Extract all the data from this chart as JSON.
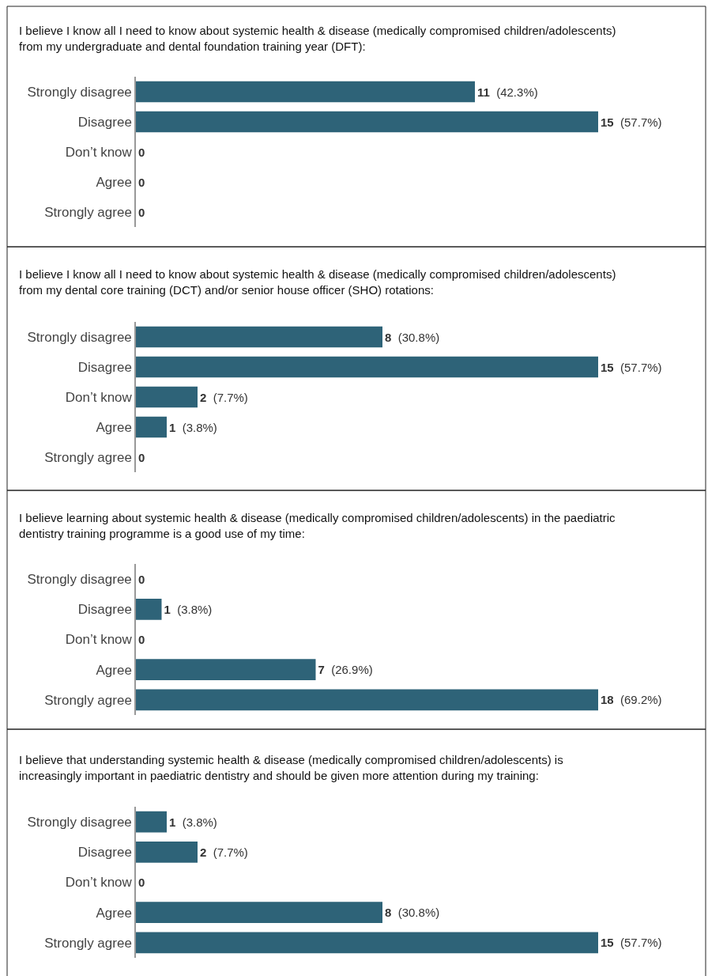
{
  "chart_data": [
    {
      "type": "bar",
      "orientation": "horizontal",
      "title": "I believe I know all I need to know about systemic health & disease (medically compromised children/adolescents) from my undergraduate and dental foundation training year (DFT):",
      "categories": [
        "Strongly disagree",
        "Disagree",
        "Don’t know",
        "Agree",
        "Strongly agree"
      ],
      "values": [
        11,
        15,
        0,
        0,
        0
      ],
      "value_labels": [
        "11 (42.3%)",
        "15 (57.7%)",
        "0",
        "0",
        "0"
      ],
      "color": "#2e6378"
    },
    {
      "type": "bar",
      "orientation": "horizontal",
      "title": "I believe I know all I need to know about systemic health & disease (medically compromised children/adolescents) from my dental core training (DCT) and/or senior house officer (SHO) rotations:",
      "categories": [
        "Strongly disagree",
        "Disagree",
        "Don’t know",
        "Agree",
        "Strongly agree"
      ],
      "values": [
        8,
        15,
        2,
        1,
        0
      ],
      "value_labels": [
        "8 (30.8%)",
        "15 (57.7%)",
        "2 (7.7%)",
        "1 (3.8%)",
        "0"
      ],
      "color": "#2e6378"
    },
    {
      "type": "bar",
      "orientation": "horizontal",
      "title": "I believe learning about systemic health & disease (medically compromised children/adolescents) in the paediatric dentistry training programme is a good use of my time:",
      "categories": [
        "Strongly disagree",
        "Disagree",
        "Don’t know",
        "Agree",
        "Strongly agree"
      ],
      "values": [
        0,
        1,
        0,
        7,
        18
      ],
      "value_labels": [
        "0",
        "1 (3.8%)",
        "0",
        "7 (26.9%)",
        "18 (69.2%)"
      ],
      "color": "#2e6378"
    },
    {
      "type": "bar",
      "orientation": "horizontal",
      "title": "I believe that understanding systemic health & disease (medically compromised children/adolescents) is increasingly important in paediatric dentistry and should be given more attention during my training:",
      "categories": [
        "Strongly disagree",
        "Disagree",
        "Don’t know",
        "Agree",
        "Strongly agree"
      ],
      "values": [
        1,
        2,
        0,
        8,
        15
      ],
      "value_labels": [
        "1 (3.8%)",
        "2 (7.7%)",
        "0",
        "8 (30.8%)",
        "15 (57.7%)"
      ],
      "color": "#2e6378"
    }
  ]
}
